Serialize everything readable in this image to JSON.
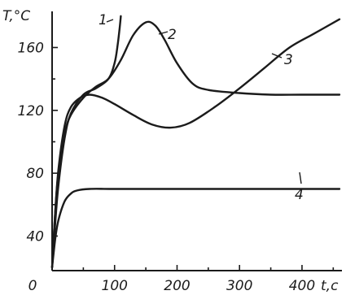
{
  "chart_data": {
    "type": "line",
    "ylabel": "T,°C",
    "xlabel": "t,c",
    "xlim": [
      0,
      460
    ],
    "ylim": [
      18,
      183
    ],
    "x_ticks": [
      0,
      100,
      200,
      300,
      400
    ],
    "x_tick_labels": [
      "0",
      "100",
      "200",
      "300",
      "400"
    ],
    "y_ticks": [
      40,
      80,
      120,
      160
    ],
    "y_tick_labels": [
      "40",
      "80",
      "120",
      "160"
    ],
    "series": [
      {
        "name": "1",
        "x": [
          0,
          5,
          10,
          20,
          30,
          50,
          70,
          90,
          100,
          105,
          108,
          110
        ],
        "y": [
          20,
          48,
          72,
          102,
          118,
          130,
          134,
          140,
          150,
          162,
          172,
          180
        ]
      },
      {
        "name": "2",
        "x": [
          0,
          5,
          10,
          20,
          30,
          50,
          70,
          90,
          110,
          130,
          150,
          165,
          180,
          200,
          225,
          250,
          300,
          350,
          400,
          460
        ],
        "y": [
          20,
          55,
          80,
          105,
          117,
          128,
          135,
          140,
          152,
          168,
          176,
          174,
          165,
          150,
          137,
          133,
          131,
          130,
          130,
          130
        ]
      },
      {
        "name": "3",
        "x": [
          0,
          5,
          10,
          20,
          30,
          45,
          60,
          80,
          100,
          130,
          160,
          190,
          220,
          260,
          300,
          340,
          380,
          420,
          460
        ],
        "y": [
          20,
          55,
          82,
          110,
          122,
          128,
          130,
          128,
          124,
          117,
          111,
          109,
          112,
          122,
          134,
          147,
          160,
          169,
          178
        ]
      },
      {
        "name": "4",
        "x": [
          0,
          5,
          10,
          20,
          30,
          40,
          60,
          100,
          200,
          300,
          400,
          460
        ],
        "y": [
          20,
          38,
          50,
          62,
          67,
          69,
          70,
          70,
          70,
          70,
          70,
          70
        ]
      }
    ],
    "annotations": [
      "1",
      "2",
      "3",
      "4"
    ],
    "grid": false,
    "legend": "none"
  }
}
